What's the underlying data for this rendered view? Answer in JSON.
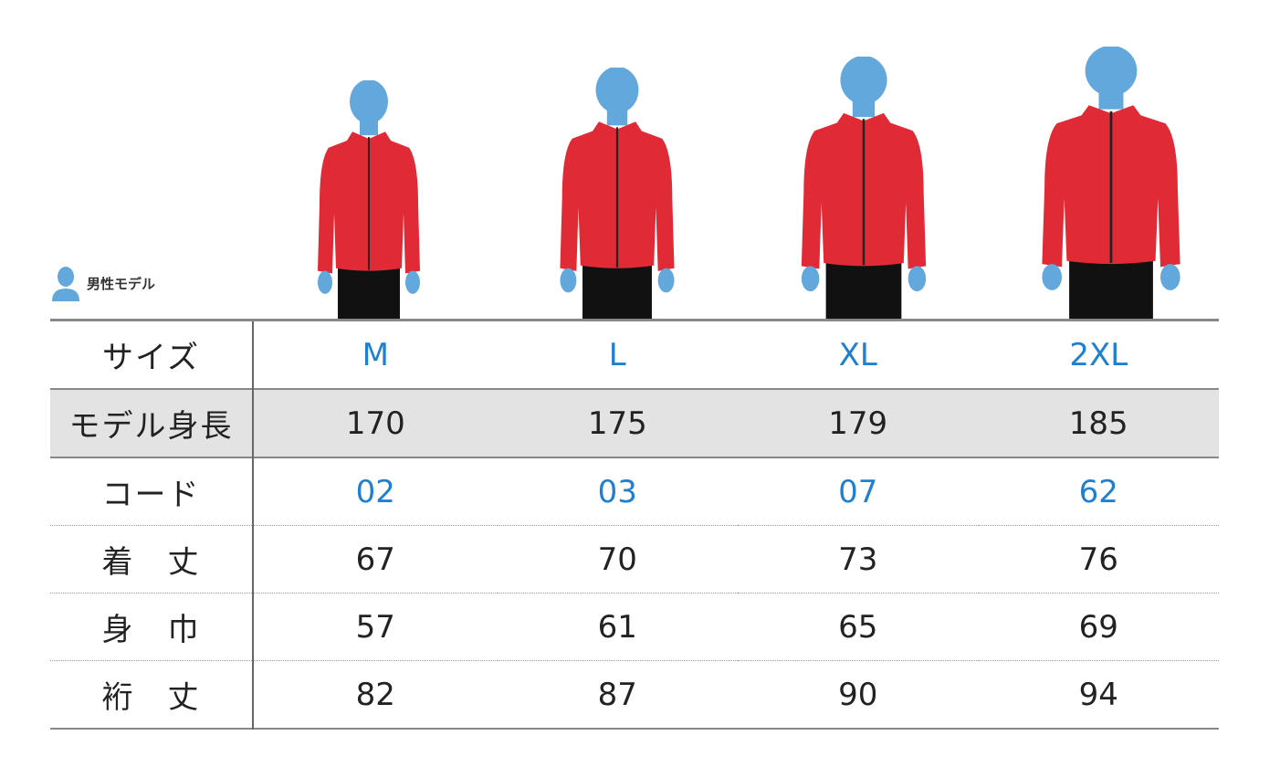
{
  "legend": {
    "icon": "person-icon",
    "label": "男性モデル"
  },
  "colors": {
    "accent": "#1f7fd0",
    "jacket": "#e02a35",
    "figure": "#62a8dc"
  },
  "sizes": [
    "M",
    "L",
    "XL",
    "2XL"
  ],
  "rows": [
    {
      "label": "サイズ",
      "values": [
        "M",
        "L",
        "XL",
        "2XL"
      ],
      "highlight": "blue"
    },
    {
      "label": "モデル身長",
      "values": [
        "170",
        "175",
        "179",
        "185"
      ],
      "highlight": "gray"
    },
    {
      "label": "コード",
      "values": [
        "02",
        "03",
        "07",
        "62"
      ],
      "highlight": "blue"
    },
    {
      "label": "着　丈",
      "values": [
        "67",
        "70",
        "73",
        "76"
      ]
    },
    {
      "label": "身　巾",
      "values": [
        "57",
        "61",
        "65",
        "69"
      ]
    },
    {
      "label": "裄　丈",
      "values": [
        "82",
        "87",
        "90",
        "94"
      ]
    }
  ]
}
